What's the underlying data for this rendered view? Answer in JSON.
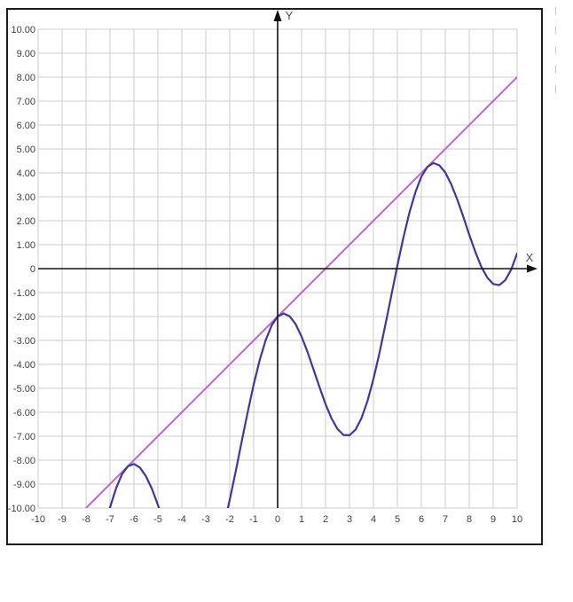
{
  "page": {
    "background": "#ffffff",
    "frame_border_color": "#1d1d1d",
    "dashed_guide_color": "#c9c9c9"
  },
  "chart_data": {
    "type": "line",
    "title": "",
    "x_axis_label": "X",
    "y_axis_label": "Y",
    "x_range": [
      -10,
      10
    ],
    "y_range": [
      -10,
      10
    ],
    "grid": true,
    "grid_color": "#cdcdcd",
    "axis_color": "#111111",
    "tick_label_color": "#3d3d3d",
    "axis_letter_color": "#4d4d4d",
    "legend": "none",
    "x_ticks": {
      "values": [
        -10,
        -9,
        -8,
        -7,
        -6,
        -5,
        -4,
        -3,
        -2,
        -1,
        0,
        1,
        2,
        3,
        4,
        5,
        6,
        7,
        8,
        9,
        10
      ],
      "labels": [
        "-10",
        "-9",
        "-8",
        "-7",
        "-6",
        "-5",
        "-4",
        "-3",
        "-2",
        "-1",
        "0",
        "1",
        "2",
        "3",
        "4",
        "5",
        "6",
        "7",
        "8",
        "9",
        "10"
      ]
    },
    "y_ticks": {
      "values": [
        10,
        9,
        8,
        7,
        6,
        5,
        4,
        3,
        2,
        1,
        0,
        -1,
        -2,
        -3,
        -4,
        -5,
        -6,
        -7,
        -8,
        -9,
        -10
      ],
      "labels": [
        "10.00",
        "9.00",
        "8.00",
        "7.00",
        "6.00",
        "5.00",
        "4.00",
        "3.00",
        "2.00",
        "1.00",
        "0",
        "-1.00",
        "-2.00",
        "-3.00",
        "-4.00",
        "-5.00",
        "-6.00",
        "-7.00",
        "-8.00",
        "-9.00",
        "-10.00"
      ]
    },
    "series": [
      {
        "name": "magenta-line",
        "color": "#c263d8",
        "stroke_width": 2,
        "segments": [
          [
            [
              -8,
              -10
            ],
            [
              10,
              8
            ]
          ]
        ]
      },
      {
        "name": "blue-curve",
        "color": "#3e36a6",
        "stroke_width": 2.2,
        "segments": [
          [
            [
              -7.05,
              -10.17
            ],
            [
              -7,
              -9.98
            ],
            [
              -6.75,
              -9.18
            ],
            [
              -6.5,
              -8.59
            ],
            [
              -6.25,
              -8.25
            ],
            [
              -6,
              -8.16
            ],
            [
              -5.75,
              -8.31
            ],
            [
              -5.5,
              -8.67
            ],
            [
              -5.25,
              -9.2
            ],
            [
              -5,
              -9.87
            ],
            [
              -4.9,
              -10.15
            ]
          ],
          [
            [
              -2.3,
              -10.97
            ],
            [
              -2.25,
              -10.76
            ],
            [
              -2,
              -9.66
            ],
            [
              -1.75,
              -8.46
            ],
            [
              -1.5,
              -7.22
            ],
            [
              -1.25,
              -5.99
            ],
            [
              -1,
              -4.84
            ],
            [
              -0.75,
              -3.82
            ],
            [
              -0.5,
              -2.99
            ],
            [
              -0.25,
              -2.37
            ],
            [
              0,
              -2
            ],
            [
              0.25,
              -1.87
            ],
            [
              0.5,
              -1.99
            ],
            [
              0.75,
              -2.32
            ],
            [
              1,
              -2.84
            ],
            [
              1.25,
              -3.49
            ],
            [
              1.5,
              -4.22
            ],
            [
              1.75,
              -4.96
            ],
            [
              2,
              -5.66
            ],
            [
              2.25,
              -6.26
            ],
            [
              2.5,
              -6.7
            ],
            [
              2.75,
              -6.95
            ],
            [
              3,
              -6.96
            ],
            [
              3.25,
              -6.73
            ],
            [
              3.5,
              -6.25
            ],
            [
              3.75,
              -5.53
            ],
            [
              4,
              -4.61
            ],
            [
              4.25,
              -3.53
            ],
            [
              4.5,
              -2.34
            ],
            [
              4.75,
              -1.1
            ],
            [
              5,
              0.13
            ],
            [
              5.25,
              1.3
            ],
            [
              5.5,
              2.33
            ],
            [
              5.75,
              3.19
            ],
            [
              6,
              3.84
            ],
            [
              6.25,
              4.25
            ],
            [
              6.5,
              4.41
            ],
            [
              6.75,
              4.32
            ],
            [
              7,
              4.02
            ],
            [
              7.25,
              3.52
            ],
            [
              7.5,
              2.89
            ],
            [
              7.75,
              2.17
            ],
            [
              8,
              1.42
            ],
            [
              8.25,
              0.71
            ],
            [
              8.5,
              0.09
            ],
            [
              8.75,
              -0.37
            ],
            [
              9,
              -0.64
            ],
            [
              9.25,
              -0.69
            ],
            [
              9.5,
              -0.49
            ],
            [
              9.75,
              -0.04
            ],
            [
              10,
              0.64
            ]
          ]
        ]
      }
    ]
  }
}
